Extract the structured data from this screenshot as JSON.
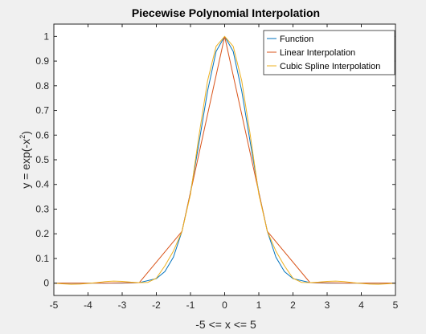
{
  "chart_data": {
    "type": "line",
    "title": "Piecewise Polynomial Interpolation",
    "xlabel": "-5 <= x <= 5",
    "ylabel_main": "y = exp(-x",
    "ylabel_sup": "2",
    "ylabel_end": ")",
    "xlim": [
      -5,
      5
    ],
    "ylim": [
      -0.05,
      1.05
    ],
    "xticks": [
      -5,
      -4,
      -3,
      -2,
      -1,
      0,
      1,
      2,
      3,
      4,
      5
    ],
    "xtick_labels": [
      "-5",
      "-4",
      "-3",
      "-2",
      "-1",
      "0",
      "1",
      "2",
      "3",
      "4",
      "5"
    ],
    "yticks": [
      0,
      0.1,
      0.2,
      0.3,
      0.4,
      0.5,
      0.6,
      0.7,
      0.8,
      0.9,
      1
    ],
    "ytick_labels": [
      "0",
      "0.1",
      "0.2",
      "0.3",
      "0.4",
      "0.5",
      "0.6",
      "0.7",
      "0.8",
      "0.9",
      "1"
    ],
    "grid": false,
    "legend_position": "top-right",
    "series": [
      {
        "name": "Function",
        "color": "#0072BD",
        "x": [
          -5,
          -4,
          -3,
          -2.5,
          -2,
          -1.75,
          -1.5,
          -1.25,
          -1,
          -0.75,
          -0.5,
          -0.25,
          0,
          0.25,
          0.5,
          0.75,
          1,
          1.25,
          1.5,
          1.75,
          2,
          2.5,
          3,
          4,
          5
        ],
        "y": [
          0,
          0,
          0.0001,
          0.0019,
          0.0183,
          0.0468,
          0.1054,
          0.2096,
          0.3679,
          0.5698,
          0.7788,
          0.9394,
          1,
          0.9394,
          0.7788,
          0.5698,
          0.3679,
          0.2096,
          0.1054,
          0.0468,
          0.0183,
          0.0019,
          0.0001,
          0,
          0
        ]
      },
      {
        "name": "Linear Interpolation",
        "color": "#D95319",
        "x": [
          -5,
          -3.75,
          -2.5,
          -1.25,
          0,
          1.25,
          2.5,
          3.75,
          5
        ],
        "y": [
          0,
          0,
          0.0019,
          0.2096,
          1,
          0.2096,
          0.0019,
          0,
          0
        ]
      },
      {
        "name": "Cubic Spline Interpolation",
        "color": "#EDB120",
        "x": [
          -5,
          -4.75,
          -4.5,
          -4.25,
          -4,
          -3.75,
          -3.5,
          -3.25,
          -3,
          -2.75,
          -2.5,
          -2.25,
          -2,
          -1.75,
          -1.5,
          -1.25,
          -1,
          -0.75,
          -0.5,
          -0.25,
          0,
          0.25,
          0.5,
          0.75,
          1,
          1.25,
          1.5,
          1.75,
          2,
          2.25,
          2.5,
          2.75,
          3,
          3.25,
          3.5,
          3.75,
          4,
          4.25,
          4.5,
          4.75,
          5
        ],
        "y": [
          0,
          -0.003,
          -0.005,
          -0.004,
          -0.001,
          0.002,
          0.006,
          0.008,
          0.007,
          0.004,
          0.0019,
          0.003,
          0.02,
          0.07,
          0.13,
          0.2096,
          0.36,
          0.6,
          0.82,
          0.96,
          1,
          0.96,
          0.82,
          0.6,
          0.36,
          0.2096,
          0.13,
          0.07,
          0.02,
          0.003,
          0.0019,
          0.004,
          0.007,
          0.008,
          0.006,
          0.002,
          -0.001,
          -0.004,
          -0.005,
          -0.003,
          0
        ]
      }
    ]
  }
}
